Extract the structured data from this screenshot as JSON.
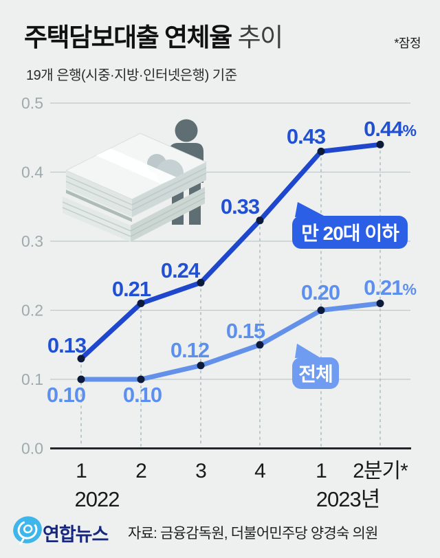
{
  "header": {
    "title_bold": "주택담보대출 연체율",
    "title_regular": "추이",
    "note": "*잠정",
    "subtitle": "19개 은행(시중·지방·인터넷은행) 기준"
  },
  "chart_data": {
    "type": "line",
    "title": "주택담보대출 연체율 추이",
    "subtitle": "19개 은행(시중·지방·인터넷은행) 기준",
    "unit": "%",
    "categories": [
      "1",
      "2",
      "3",
      "4",
      "1",
      "2분기*"
    ],
    "year_labels": [
      "2022",
      "2023년"
    ],
    "y_ticks": [
      "0.5",
      "0.4",
      "0.3",
      "0.2",
      "0.1",
      "0.0"
    ],
    "ylim": [
      0.0,
      0.5
    ],
    "grid": true,
    "legend_position": "inline-callouts",
    "series": [
      {
        "name": "만 20대 이하",
        "values": [
          0.13,
          0.21,
          0.24,
          0.33,
          0.43,
          0.44
        ],
        "point_labels": [
          "0.13",
          "0.21",
          "0.24",
          "0.33",
          "0.43",
          "0.44%"
        ],
        "color": "#1e47cd",
        "label_color": "#2150d2",
        "callout_color": "#2b5fe6"
      },
      {
        "name": "전체",
        "values": [
          0.1,
          0.1,
          0.12,
          0.15,
          0.2,
          0.21
        ],
        "point_labels": [
          "0.10",
          "0.10",
          "0.12",
          "0.15",
          "0.20",
          "0.21%"
        ],
        "color": "#6391ea",
        "label_color": "#5d90ee",
        "callout_color": "#6f9cf0"
      }
    ]
  },
  "colors": {
    "background": "#edf0ee",
    "gridline": "#bfc9c9",
    "baseline": "#22262a",
    "dashed_guide": "#a3b8bf",
    "axis_label": "#9faaad",
    "tick_label": "#17191b",
    "point_dot": "#0c1a3e",
    "logo_blue": "#3eb6e9",
    "brand_navy": "#18277e"
  },
  "footer": {
    "brand": "연합뉴스",
    "source": "자료: 금융감독원, 더불어민주당 양경숙 의원"
  }
}
